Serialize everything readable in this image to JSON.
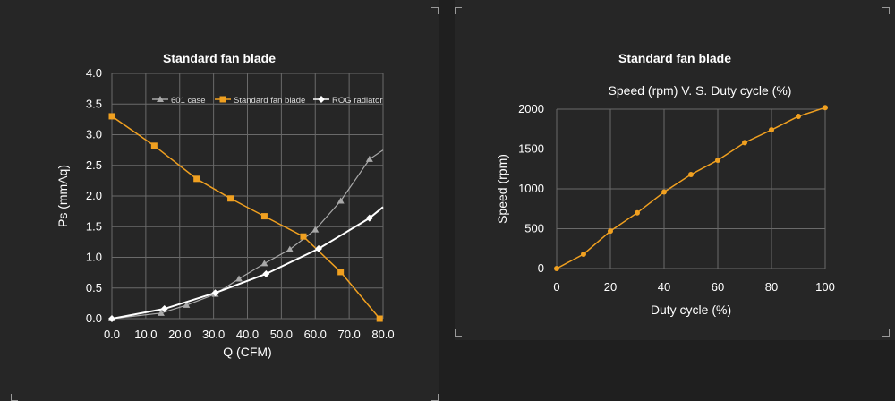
{
  "chart_data": [
    {
      "type": "line",
      "title": "Standard fan blade",
      "xlabel": "Q (CFM)",
      "ylabel": "Ps (mmAq)",
      "xlim": [
        0,
        80
      ],
      "ylim": [
        0,
        4
      ],
      "x_ticks": [
        "0.0",
        "10.0",
        "20.0",
        "30.0",
        "40.0",
        "50.0",
        "60.0",
        "70.0",
        "80.0"
      ],
      "y_ticks": [
        "0.0",
        "0.5",
        "1.0",
        "1.5",
        "2.0",
        "2.5",
        "3.0",
        "3.5",
        "4.0"
      ],
      "grid": true,
      "legend": "top",
      "series": [
        {
          "name": "601 case",
          "color": "#a9a9a9",
          "marker": "triangle",
          "points": [
            [
              0,
              0
            ],
            [
              14.5,
              0.09
            ],
            [
              22,
              0.22
            ],
            [
              30.5,
              0.4
            ],
            [
              37.5,
              0.65
            ],
            [
              45,
              0.9
            ],
            [
              52.5,
              1.13
            ],
            [
              60,
              1.45
            ],
            [
              67.5,
              1.92
            ],
            [
              76,
              2.6
            ],
            [
              80,
              2.75
            ]
          ]
        },
        {
          "name": "Standard fan blade",
          "color": "#f0a020",
          "marker": "square",
          "points": [
            [
              0,
              3.3
            ],
            [
              12.5,
              2.82
            ],
            [
              25,
              2.28
            ],
            [
              35,
              1.96
            ],
            [
              45,
              1.67
            ],
            [
              56.5,
              1.34
            ],
            [
              67.5,
              0.76
            ],
            [
              79,
              0.0
            ]
          ]
        },
        {
          "name": "ROG radiator",
          "color": "#ffffff",
          "marker": "diamond",
          "points": [
            [
              0,
              0
            ],
            [
              15.5,
              0.16
            ],
            [
              30.5,
              0.42
            ],
            [
              45.5,
              0.73
            ],
            [
              61,
              1.14
            ],
            [
              76,
              1.64
            ],
            [
              80,
              1.82
            ]
          ]
        }
      ]
    },
    {
      "type": "line",
      "title": "Standard fan blade",
      "subtitle": "Speed (rpm) V. S. Duty cycle (%)",
      "xlabel": "Duty cycle (%)",
      "ylabel": "Speed (rpm)",
      "xlim": [
        0,
        100
      ],
      "ylim": [
        0,
        2000
      ],
      "x_ticks": [
        "0",
        "20",
        "40",
        "60",
        "80",
        "100"
      ],
      "y_ticks": [
        "0",
        "500",
        "1000",
        "1500",
        "2000"
      ],
      "grid": true,
      "series": [
        {
          "name": "",
          "color": "#f0a020",
          "marker": "circle",
          "points": [
            [
              0,
              0
            ],
            [
              10,
              180
            ],
            [
              20,
              470
            ],
            [
              30,
              700
            ],
            [
              40,
              960
            ],
            [
              50,
              1180
            ],
            [
              60,
              1360
            ],
            [
              70,
              1580
            ],
            [
              80,
              1740
            ],
            [
              90,
              1910
            ],
            [
              100,
              2020
            ]
          ]
        }
      ]
    }
  ]
}
